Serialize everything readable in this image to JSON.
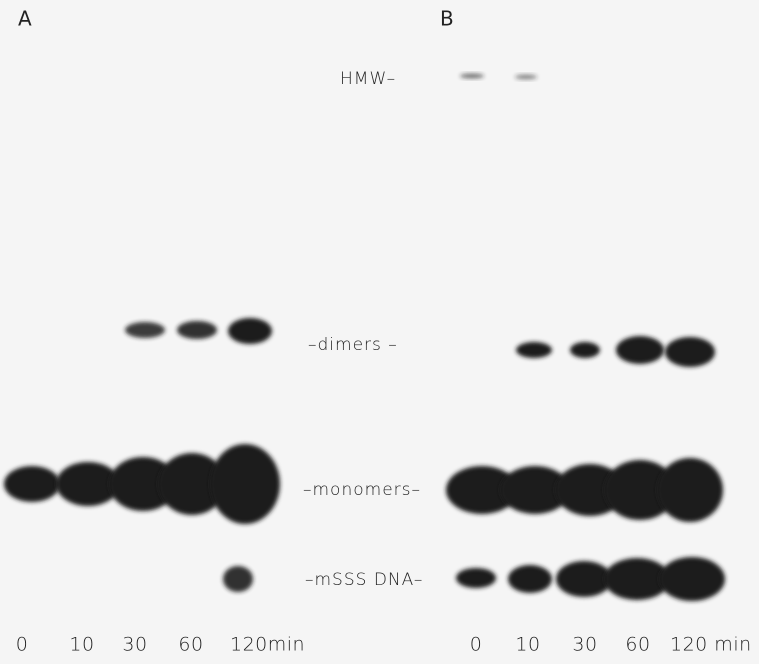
{
  "panels": [
    {
      "label": "A",
      "lanes": [
        "0",
        "10",
        "30",
        "60",
        "120min"
      ]
    },
    {
      "label": "B",
      "lanes": [
        "0",
        "10",
        "30",
        "60",
        "120 min"
      ]
    }
  ],
  "band_labels": {
    "hmw": "HMW–",
    "dimers": "–dimers –",
    "monomers": "–monomers–",
    "msss": "–mSSS DNA–"
  }
}
